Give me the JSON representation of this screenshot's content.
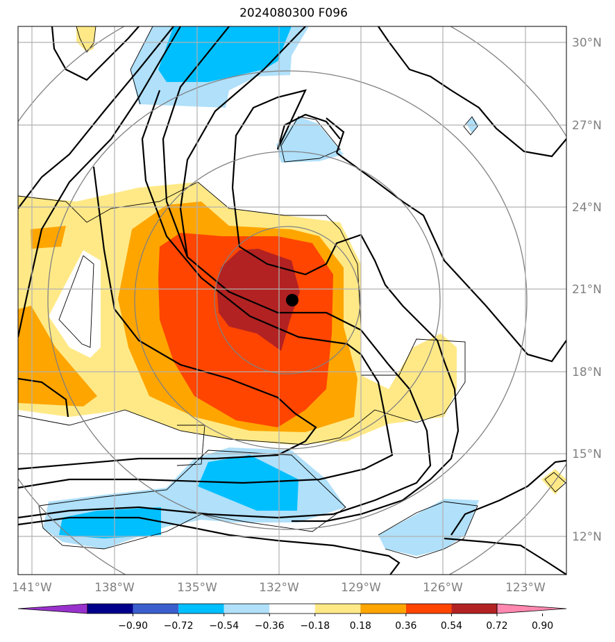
{
  "title": "2024080300 F096",
  "map": {
    "lon_ticks": [
      "141°W",
      "138°W",
      "135°W",
      "132°W",
      "129°W",
      "126°W",
      "123°W"
    ],
    "lat_ticks": [
      "30°N",
      "27°N",
      "24°N",
      "21°N",
      "18°N",
      "15°N",
      "12°N"
    ],
    "center_marker": "storm-center-dot",
    "colors": {
      "neg_strong": "#00bfff",
      "neg_weak": "#b0e0fa",
      "pos_1": "#ffe987",
      "pos_2": "#ffa500",
      "pos_3": "#ff4500",
      "pos_4": "#b22222"
    }
  },
  "colorbar": {
    "labels": [
      "−0.90",
      "−0.72",
      "−0.54",
      "−0.36",
      "−0.18",
      "0.18",
      "0.36",
      "0.54",
      "0.72",
      "0.90"
    ],
    "colors": [
      "#9932cc",
      "#00008b",
      "#3a5fcd",
      "#00bfff",
      "#b0e0fa",
      "#ffffff",
      "#ffe987",
      "#ffa500",
      "#ff4500",
      "#b22222",
      "#ff88b0"
    ]
  }
}
